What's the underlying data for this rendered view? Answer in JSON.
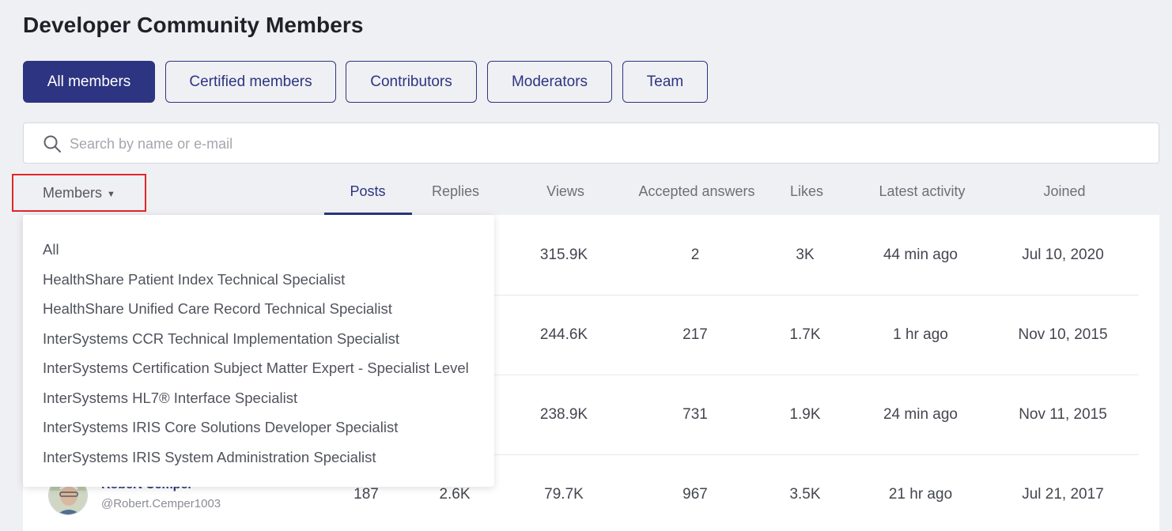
{
  "page": {
    "title": "Developer Community Members"
  },
  "tabs": [
    {
      "label": "All members",
      "active": true
    },
    {
      "label": "Certified members",
      "active": false
    },
    {
      "label": "Contributors",
      "active": false
    },
    {
      "label": "Moderators",
      "active": false
    },
    {
      "label": "Team",
      "active": false
    }
  ],
  "search": {
    "placeholder": "Search by name or e-mail",
    "value": "",
    "icon": "search-icon"
  },
  "filter": {
    "label": "Members",
    "icon": "caret-down-icon"
  },
  "columns": [
    "Posts",
    "Replies",
    "Views",
    "Accepted answers",
    "Likes",
    "Latest activity",
    "Joined"
  ],
  "active_column": "Posts",
  "rows": [
    {
      "posts": "",
      "replies": "",
      "views": "315.9K",
      "accepted": "2",
      "likes": "3K",
      "latest": "44 min ago",
      "joined": "Jul 10, 2020"
    },
    {
      "posts": "",
      "replies": "",
      "views": "244.6K",
      "accepted": "217",
      "likes": "1.7K",
      "latest": "1 hr ago",
      "joined": "Nov 10, 2015"
    },
    {
      "posts": "",
      "replies": "",
      "views": "238.9K",
      "accepted": "731",
      "likes": "1.9K",
      "latest": "24 min ago",
      "joined": "Nov 11, 2015"
    },
    {
      "name": "Robert Cemper",
      "handle": "@Robert.Cemper1003",
      "posts": "187",
      "replies": "2.6K",
      "views": "79.7K",
      "accepted": "967",
      "likes": "3.5K",
      "latest": "21 hr ago",
      "joined": "Jul 21, 2017"
    }
  ],
  "dropdown": {
    "items": [
      "All",
      "HealthShare Patient Index Technical Specialist",
      "HealthShare Unified Care Record Technical Specialist",
      "InterSystems CCR Technical Implementation Specialist",
      "InterSystems Certification Subject Matter Expert - Specialist Level",
      "InterSystems HL7® Interface Specialist",
      "InterSystems IRIS Core Solutions Developer Specialist",
      "InterSystems IRIS System Administration Specialist"
    ]
  },
  "colors": {
    "accent": "#2d3481",
    "background": "#eff0f3",
    "highlight_border": "#e0262b"
  }
}
